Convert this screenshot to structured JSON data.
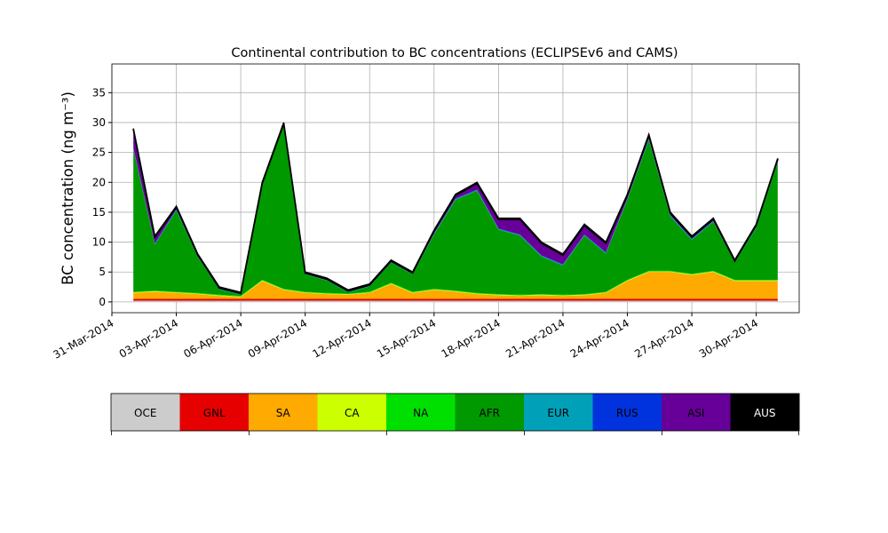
{
  "chart_data": {
    "type": "stacked_area",
    "title": "Continental contribution to BC concentrations (ECLIPSEv6 and CAMS)",
    "y_label": "BC concentration (ng m⁻³)",
    "x": [
      "01-Apr-2014",
      "02-Apr-2014",
      "03-Apr-2014",
      "04-Apr-2014",
      "05-Apr-2014",
      "06-Apr-2014",
      "07-Apr-2014",
      "08-Apr-2014",
      "09-Apr-2014",
      "10-Apr-2014",
      "11-Apr-2014",
      "12-Apr-2014",
      "13-Apr-2014",
      "14-Apr-2014",
      "15-Apr-2014",
      "16-Apr-2014",
      "17-Apr-2014",
      "18-Apr-2014",
      "19-Apr-2014",
      "20-Apr-2014",
      "21-Apr-2014",
      "22-Apr-2014",
      "23-Apr-2014",
      "24-Apr-2014",
      "25-Apr-2014",
      "26-Apr-2014",
      "27-Apr-2014",
      "28-Apr-2014",
      "29-Apr-2014",
      "30-Apr-2014",
      "01-May-2014"
    ],
    "xlim": [
      "31-Mar-2014",
      "02-May-2014"
    ],
    "xticks": [
      "31-Mar-2014",
      "03-Apr-2014",
      "06-Apr-2014",
      "09-Apr-2014",
      "12-Apr-2014",
      "15-Apr-2014",
      "18-Apr-2014",
      "21-Apr-2014",
      "24-Apr-2014",
      "27-Apr-2014",
      "30-Apr-2014"
    ],
    "ylim": [
      -1.8,
      39.8
    ],
    "yticks": [
      0,
      5,
      10,
      15,
      20,
      25,
      30,
      35
    ],
    "grid": true,
    "series": [
      {
        "name": "OCE",
        "color": "#cccccc",
        "values": [
          0.2,
          0.2,
          0.2,
          0.2,
          0.2,
          0.2,
          0.2,
          0.2,
          0.2,
          0.2,
          0.2,
          0.2,
          0.2,
          0.2,
          0.2,
          0.2,
          0.2,
          0.2,
          0.2,
          0.2,
          0.2,
          0.2,
          0.2,
          0.2,
          0.2,
          0.2,
          0.2,
          0.2,
          0.2,
          0.2,
          0.2
        ]
      },
      {
        "name": "GNL",
        "color": "#e60000",
        "values": [
          0.3,
          0.3,
          0.3,
          0.3,
          0.3,
          0.3,
          0.3,
          0.3,
          0.3,
          0.3,
          0.3,
          0.3,
          0.3,
          0.3,
          0.3,
          0.3,
          0.3,
          0.3,
          0.3,
          0.3,
          0.3,
          0.3,
          0.3,
          0.3,
          0.3,
          0.3,
          0.3,
          0.3,
          0.3,
          0.3,
          0.3
        ]
      },
      {
        "name": "SA",
        "color": "#ffaa00",
        "values": [
          1,
          1.2,
          1,
          0.8,
          0.5,
          0.3,
          3,
          1.5,
          1,
          0.8,
          0.7,
          1,
          2.5,
          1,
          1.5,
          1.2,
          0.8,
          0.6,
          0.5,
          0.6,
          0.5,
          0.6,
          1,
          3,
          4.5,
          4.5,
          4,
          4.5,
          3,
          3,
          3
        ]
      },
      {
        "name": "CA",
        "color": "#ccff00",
        "values": [
          0.1,
          0.1,
          0.1,
          0.1,
          0.1,
          0.1,
          0.1,
          0.1,
          0.1,
          0.1,
          0.1,
          0.1,
          0.1,
          0.1,
          0.1,
          0.1,
          0.1,
          0.1,
          0.1,
          0.1,
          0.1,
          0.1,
          0.1,
          0.1,
          0.1,
          0.1,
          0.1,
          0.1,
          0.1,
          0.1,
          0.1
        ]
      },
      {
        "name": "NA",
        "color": "#00e000",
        "values": [
          0.1,
          0.1,
          0.1,
          0.1,
          0.1,
          0.1,
          0.1,
          0.1,
          0.1,
          0.1,
          0.1,
          0.1,
          0.1,
          0.1,
          0.1,
          0.1,
          0.1,
          0.1,
          0.1,
          0.1,
          0.1,
          0.1,
          0.1,
          0.1,
          0.1,
          0.1,
          0.1,
          0.1,
          0.1,
          0.1,
          0.1
        ]
      },
      {
        "name": "AFR",
        "color": "#009900",
        "values": [
          23.9,
          7.7,
          13.6,
          6,
          0.9,
          0.2,
          15.9,
          27.4,
          2.9,
          2.1,
          0.2,
          0.9,
          3.4,
          2.9,
          9.1,
          15.2,
          17.1,
          10.8,
          9.9,
          6.3,
          4.9,
          9.8,
          6.4,
          13.4,
          21.9,
          9.1,
          5.7,
          8.2,
          2.9,
          8.7,
          19.6
        ]
      },
      {
        "name": "EUR",
        "color": "#00a0b8",
        "values": [
          0.1,
          0.1,
          0.1,
          0.1,
          0.1,
          0.1,
          0.1,
          0.1,
          0.1,
          0.1,
          0.1,
          0.1,
          0.1,
          0.1,
          0.1,
          0.1,
          0.1,
          0.1,
          0.1,
          0.1,
          0.1,
          0.1,
          0.1,
          0.1,
          0.1,
          0.1,
          0.1,
          0.1,
          0.1,
          0.1,
          0.1
        ]
      },
      {
        "name": "RUS",
        "color": "#0033dd",
        "values": [
          0.1,
          0.1,
          0.1,
          0.1,
          0.1,
          0.1,
          0.1,
          0.1,
          0.1,
          0.1,
          0.1,
          0.1,
          0.1,
          0.1,
          0.1,
          0.1,
          0.1,
          0.1,
          0.1,
          0.1,
          0.1,
          0.1,
          0.1,
          0.1,
          0.1,
          0.1,
          0.1,
          0.1,
          0.1,
          0.1,
          0.1
        ]
      },
      {
        "name": "ASI",
        "color": "#660099",
        "values": [
          3,
          1,
          0.3,
          0.1,
          0,
          0,
          0,
          0,
          0,
          0,
          0,
          0,
          0,
          0,
          0.3,
          0.5,
          1,
          1.5,
          2.5,
          2,
          1.5,
          1.5,
          1.5,
          0.5,
          0.5,
          0.3,
          0.2,
          0.2,
          0,
          0.2,
          0.3
        ]
      },
      {
        "name": "AUS",
        "color": "#000000",
        "values": [
          0.2,
          0.2,
          0.2,
          0.2,
          0.2,
          0.2,
          0.2,
          0.2,
          0.2,
          0.2,
          0.2,
          0.2,
          0.2,
          0.2,
          0.2,
          0.2,
          0.2,
          0.2,
          0.2,
          0.2,
          0.2,
          0.2,
          0.2,
          0.2,
          0.2,
          0.2,
          0.2,
          0.2,
          0.2,
          0.2,
          0.2
        ]
      }
    ]
  }
}
